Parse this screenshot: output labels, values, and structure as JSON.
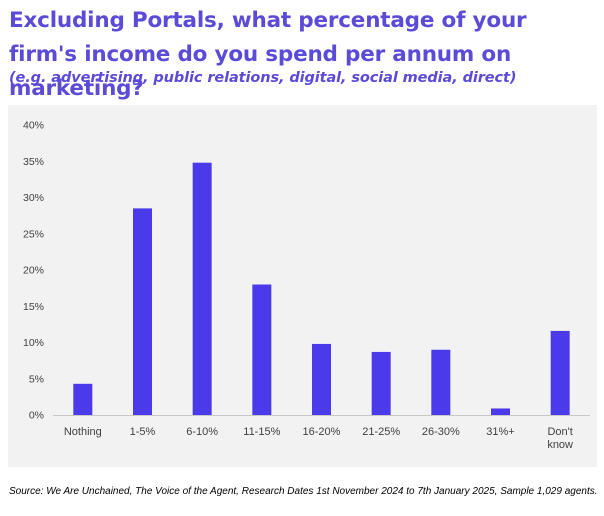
{
  "header": {
    "title": "Excluding Portals, what percentage of your firm's income do you spend per annum on marketing?",
    "subtitle": "(e.g. advertising, public relations, digital, social media, direct)"
  },
  "footer": {
    "source": "Source: We Are Unchained, The Voice of the Agent, Research Dates 1st November 2024 to 7th January 2025, Sample 1,029 agents."
  },
  "colors": {
    "title": "#5b4bd6",
    "bar": "#4a3aea",
    "panel_background": "#f2f2f2"
  },
  "chart_data": {
    "type": "bar",
    "categories": [
      "Nothing",
      "1-5%",
      "6-10%",
      "11-15%",
      "16-20%",
      "21-25%",
      "26-30%",
      "31%+",
      "Don't know"
    ],
    "values": [
      4.3,
      28.5,
      34.8,
      18.0,
      9.8,
      8.7,
      9.0,
      0.9,
      11.6
    ],
    "unit": "%",
    "ylim": [
      0,
      40
    ],
    "yticks": [
      "0%",
      "5%",
      "10%",
      "15%",
      "20%",
      "25%",
      "30%",
      "35%",
      "40%"
    ],
    "xlabel": "",
    "ylabel": "",
    "grid": false,
    "legend": "none"
  }
}
